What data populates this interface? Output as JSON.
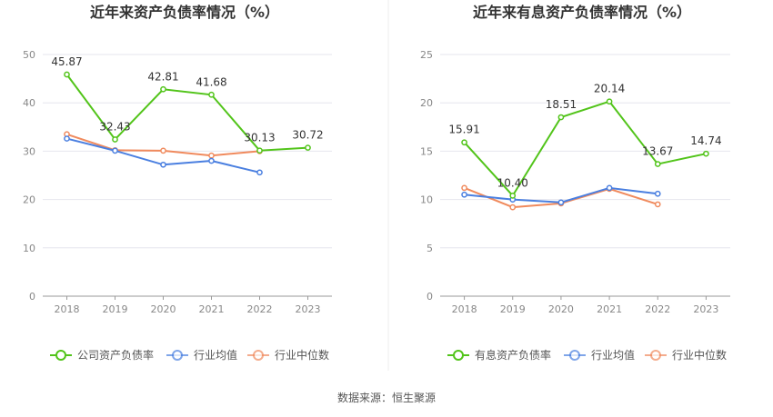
{
  "source_text": "数据来源：恒生聚源",
  "chart_data": [
    {
      "type": "line",
      "title": "近年来资产负债率情况（%）",
      "categories": [
        "2018",
        "2019",
        "2020",
        "2021",
        "2022",
        "2023"
      ],
      "ylim": [
        0,
        50
      ],
      "yticks": [
        0,
        10,
        20,
        30,
        40,
        50
      ],
      "grid": true,
      "legend_position": "bottom",
      "series": [
        {
          "name": "公司资产负债率",
          "color": "#52c41a",
          "values": [
            45.87,
            32.43,
            42.81,
            41.68,
            30.13,
            30.72
          ],
          "labels": [
            "45.87",
            "32.43",
            "42.81",
            "41.68",
            "30.13",
            "30.72"
          ]
        },
        {
          "name": "行业均值",
          "color": "#4a7fe0",
          "values": [
            32.6,
            30.1,
            27.2,
            28.0,
            25.6,
            null
          ],
          "labels": []
        },
        {
          "name": "行业中位数",
          "color": "#f08a5d",
          "values": [
            33.5,
            30.2,
            30.1,
            29.1,
            30.0,
            null
          ],
          "labels": []
        }
      ]
    },
    {
      "type": "line",
      "title": "近年来有息资产负债率情况（%）",
      "categories": [
        "2018",
        "2019",
        "2020",
        "2021",
        "2022",
        "2023"
      ],
      "ylim": [
        0,
        25
      ],
      "yticks": [
        0,
        5,
        10,
        15,
        20,
        25
      ],
      "grid": true,
      "legend_position": "bottom",
      "series": [
        {
          "name": "有息资产负债率",
          "color": "#52c41a",
          "values": [
            15.91,
            10.4,
            18.51,
            20.14,
            13.67,
            14.74
          ],
          "labels": [
            "15.91",
            "10.40",
            "18.51",
            "20.14",
            "13.67",
            "14.74"
          ]
        },
        {
          "name": "行业均值",
          "color": "#4a7fe0",
          "values": [
            10.5,
            10.0,
            9.7,
            11.2,
            10.6,
            null
          ],
          "labels": []
        },
        {
          "name": "行业中位数",
          "color": "#f08a5d",
          "values": [
            11.2,
            9.2,
            9.6,
            11.1,
            9.5,
            null
          ],
          "labels": []
        }
      ]
    }
  ]
}
